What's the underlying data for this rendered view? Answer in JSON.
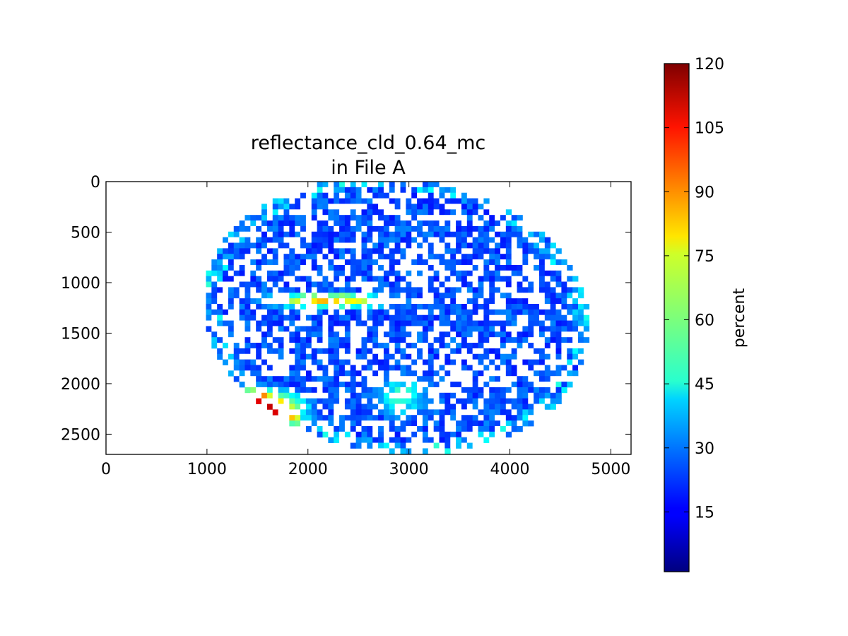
{
  "chart_data": {
    "type": "heatmap",
    "title_line1": "reflectance_cld_0.64_mc",
    "title_line2": "in File A",
    "xlabel": "",
    "ylabel": "",
    "xlim": [
      0,
      5200
    ],
    "ylim": [
      2700,
      0
    ],
    "x_ticks": [
      0,
      1000,
      2000,
      3000,
      4000,
      5000
    ],
    "y_ticks": [
      0,
      500,
      1000,
      1500,
      2000,
      2500
    ],
    "colorbar": {
      "label": "percent",
      "range": [
        1,
        120
      ],
      "ticks": [
        15,
        30,
        45,
        60,
        75,
        90,
        105,
        120
      ],
      "colormap": "jet"
    },
    "disk": {
      "center": [
        2880,
        1320
      ],
      "semi_axes": [
        1920,
        1360
      ],
      "rotation_deg": 8
    },
    "features": [
      {
        "region": "equatorial cloud band",
        "x": [
          1400,
          3000
        ],
        "y": [
          1050,
          1250
        ],
        "value": 75
      },
      {
        "region": "southern swirl",
        "x": [
          2500,
          3300
        ],
        "y": [
          1800,
          2400
        ],
        "value": 45
      },
      {
        "region": "southwest edge high reflectance",
        "x": [
          1000,
          2000
        ],
        "y": [
          2000,
          2500
        ],
        "value": 105
      }
    ]
  },
  "colors": {
    "background": "#ffffff",
    "axes": "#000000",
    "clear_sky": "#0a3cd2",
    "thick_cloud": "#ffffff"
  }
}
